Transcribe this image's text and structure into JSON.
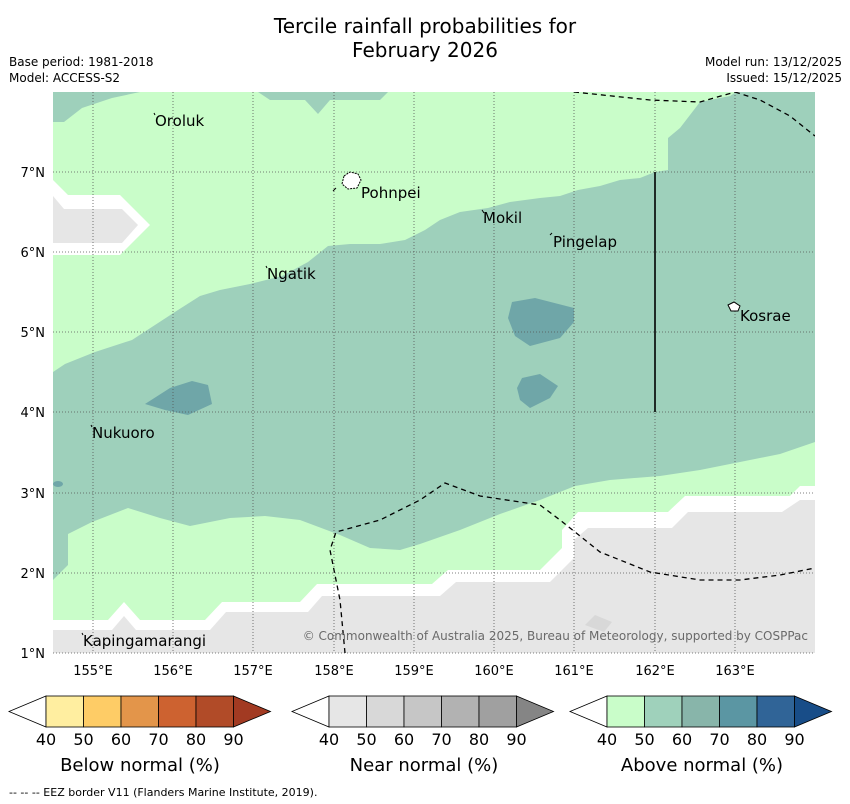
{
  "title": {
    "line1": "Tercile rainfall probabilities for",
    "line2": "February 2026"
  },
  "meta": {
    "base_period": "Base period: 1981-2018",
    "model": "Model: ACCESS-S2",
    "model_run": "Model run: 13/12/2025",
    "issued": "Issued: 15/12/2025"
  },
  "axes": {
    "lon_ticks": [
      "155°E",
      "156°E",
      "157°E",
      "158°E",
      "159°E",
      "160°E",
      "161°E",
      "162°E",
      "163°E"
    ],
    "lat_ticks": [
      "7°N",
      "6°N",
      "5°N",
      "4°N",
      "3°N",
      "2°N",
      "1°N"
    ],
    "lon_range": [
      154.5,
      164.0
    ],
    "lat_range": [
      1.0,
      8.0
    ]
  },
  "places": [
    "Oroluk",
    "Pohnpei",
    "Mokil",
    "Pingelap",
    "Ngatik",
    "Kosrae",
    "Nukuoro",
    "Kapingamarangi"
  ],
  "copyright": "© Commonwealth of Australia 2025, Bureau of Meteorology, supported by COSPPac",
  "colorbars": [
    {
      "label": "Below normal (%)",
      "ticks": [
        "40",
        "50",
        "60",
        "70",
        "80",
        "90"
      ],
      "colors": [
        "#ffffff",
        "#ffeea0",
        "#fecc66",
        "#e3954a",
        "#cd6230",
        "#b14b28",
        "#a23a22"
      ]
    },
    {
      "label": "Near normal (%)",
      "ticks": [
        "40",
        "50",
        "60",
        "70",
        "80",
        "90"
      ],
      "colors": [
        "#ffffff",
        "#e6e6e6",
        "#d8d8d8",
        "#c6c6c6",
        "#b2b2b2",
        "#a0a0a0",
        "#858585"
      ]
    },
    {
      "label": "Above normal (%)",
      "ticks": [
        "40",
        "50",
        "60",
        "70",
        "80",
        "90"
      ],
      "colors": [
        "#ffffff",
        "#c9fdc9",
        "#9fd1bb",
        "#88b5aa",
        "#5b96a3",
        "#306497",
        "#184d88"
      ]
    }
  ],
  "footer": "--  --  -- EEZ border V11 (Flanders Marine Institute, 2019)."
}
